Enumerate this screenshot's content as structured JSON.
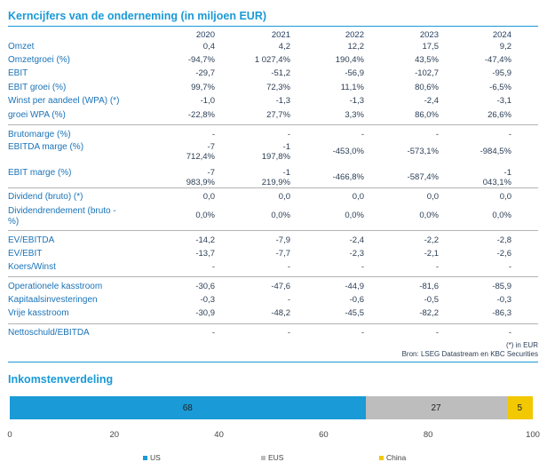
{
  "title": "Kerncijfers van de onderneming (in miljoen EUR)",
  "years": [
    "2020",
    "2021",
    "2022",
    "2023",
    "2024"
  ],
  "rows": [
    {
      "label": "Omzet",
      "values": [
        "0,4",
        "4,2",
        "12,2",
        "17,5",
        "9,2"
      ]
    },
    {
      "label": "Omzetgroei (%)",
      "values": [
        "-94,7%",
        "1 027,4%",
        "190,4%",
        "43,5%",
        "-47,4%"
      ]
    },
    {
      "label": "EBIT",
      "values": [
        "-29,7",
        "-51,2",
        "-56,9",
        "-102,7",
        "-95,9"
      ]
    },
    {
      "label": "EBIT groei (%)",
      "values": [
        "99,7%",
        "72,3%",
        "11,1%",
        "80,6%",
        "-6,5%"
      ]
    },
    {
      "label": "Winst per aandeel (WPA) (*)",
      "values": [
        "-1,0",
        "-1,3",
        "-1,3",
        "-2,4",
        "-3,1"
      ]
    },
    {
      "label": "groei WPA (%)",
      "values": [
        "-22,8%",
        "27,7%",
        "3,3%",
        "86,0%",
        "26,6%"
      ]
    },
    {
      "label": "Brutomarge (%)",
      "values": [
        "-",
        "-",
        "-",
        "-",
        "-"
      ]
    },
    {
      "label": "EBITDA marge (%)",
      "values": [
        [
          "-7",
          "712,4%"
        ],
        [
          "-1",
          "197,8%"
        ],
        "-453,0%",
        "-573,1%",
        "-984,5%"
      ]
    },
    {
      "label": "EBIT marge (%)",
      "values": [
        [
          "-7",
          "983,9%"
        ],
        [
          "-1",
          "219,9%"
        ],
        "-466,8%",
        "-587,4%",
        [
          "-1",
          "043,1%"
        ]
      ]
    },
    {
      "label": "Dividend (bruto) (*)",
      "values": [
        "0,0",
        "0,0",
        "0,0",
        "0,0",
        "0,0"
      ]
    },
    {
      "label": [
        "Dividendrendement (bruto -",
        "%)"
      ],
      "values": [
        "0,0%",
        "0,0%",
        "0,0%",
        "0,0%",
        "0,0%"
      ]
    },
    {
      "label": "EV/EBITDA",
      "values": [
        "-14,2",
        "-7,9",
        "-2,4",
        "-2,2",
        "-2,8"
      ]
    },
    {
      "label": "EV/EBIT",
      "values": [
        "-13,7",
        "-7,7",
        "-2,3",
        "-2,1",
        "-2,6"
      ]
    },
    {
      "label": "Koers/Winst",
      "values": [
        "-",
        "-",
        "-",
        "-",
        "-"
      ]
    },
    {
      "label": "Operationele kasstroom",
      "values": [
        "-30,6",
        "-47,6",
        "-44,9",
        "-81,6",
        "-85,9"
      ]
    },
    {
      "label": "Kapitaalsinvesteringen",
      "values": [
        "-0,3",
        "-",
        "-0,6",
        "-0,5",
        "-0,3"
      ]
    },
    {
      "label": "Vrije kasstroom",
      "values": [
        "-30,9",
        "-48,2",
        "-45,5",
        "-82,2",
        "-86,3"
      ]
    },
    {
      "label": "Nettoschuld/EBITDA",
      "values": [
        "-",
        "-",
        "-",
        "-",
        "-"
      ]
    }
  ],
  "footnote": "(*) in EUR",
  "source": "Bron: LSEG Datastream en KBC Securities",
  "chart_data": {
    "type": "bar",
    "title": "Inkomstenverdeling",
    "orientation": "horizontal-stacked",
    "series": [
      {
        "name": "US",
        "values": [
          68
        ],
        "color": "#1a9ad6"
      },
      {
        "name": "EUS",
        "values": [
          27
        ],
        "color": "#bdbdbd"
      },
      {
        "name": "China",
        "values": [
          5
        ],
        "color": "#f2c800"
      }
    ],
    "xlim": [
      0,
      100
    ],
    "xticks": [
      "0",
      "20",
      "40",
      "60",
      "80",
      "100"
    ],
    "legend": "bottom"
  }
}
